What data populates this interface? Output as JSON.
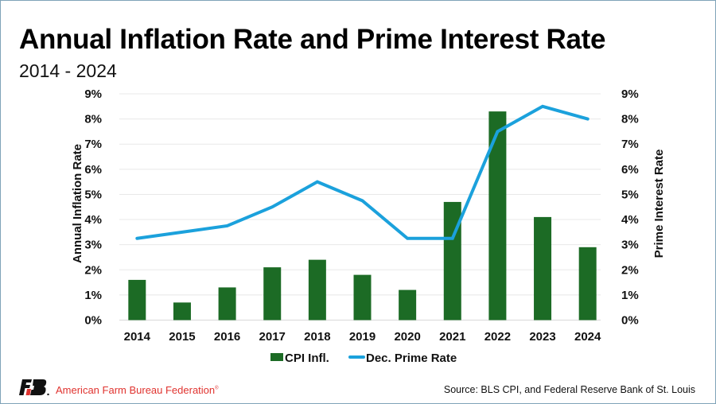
{
  "header": {
    "title": "Annual Inflation Rate and Prime Interest Rate",
    "subtitle": "2014 - 2024"
  },
  "footer": {
    "brand": "American Farm Bureau Federation",
    "brand_mark": "®",
    "source": "Source: BLS CPI, and Federal Reserve Bank of St. Louis",
    "logo_icon": "afbf-logo-icon"
  },
  "colors": {
    "bar": "#1c6b25",
    "line": "#1ba1dc",
    "grid": "#e8e8e8",
    "brand_red": "#e0332f"
  },
  "chart_data": {
    "type": "bar",
    "title": "Annual Inflation Rate and Prime Interest Rate",
    "subtitle": "2014 - 2024",
    "categories": [
      "2014",
      "2015",
      "2016",
      "2017",
      "2018",
      "2019",
      "2020",
      "2021",
      "2022",
      "2023",
      "2024"
    ],
    "series": [
      {
        "name": "CPI Infl.",
        "type": "bar",
        "axis": "left",
        "values": [
          1.6,
          0.7,
          1.3,
          2.1,
          2.4,
          1.8,
          1.2,
          4.7,
          8.3,
          4.1,
          2.9
        ]
      },
      {
        "name": "Dec. Prime Rate",
        "type": "line",
        "axis": "right",
        "values": [
          3.25,
          3.5,
          3.75,
          4.5,
          5.5,
          4.75,
          3.25,
          3.25,
          7.5,
          8.5,
          8.0
        ]
      }
    ],
    "ylabel": "Annual Inflation Rate",
    "y2label": "Prime Interest Rate",
    "xlabel": "",
    "ylim": [
      0,
      9
    ],
    "y2lim": [
      0,
      9
    ],
    "yticks": [
      "0%",
      "1%",
      "2%",
      "3%",
      "4%",
      "5%",
      "6%",
      "7%",
      "8%",
      "9%"
    ],
    "y2ticks": [
      "0%",
      "1%",
      "2%",
      "3%",
      "4%",
      "5%",
      "6%",
      "7%",
      "8%",
      "9%"
    ],
    "grid": true,
    "legend": [
      "CPI Infl.",
      "Dec. Prime Rate"
    ],
    "legend_position": "bottom"
  }
}
